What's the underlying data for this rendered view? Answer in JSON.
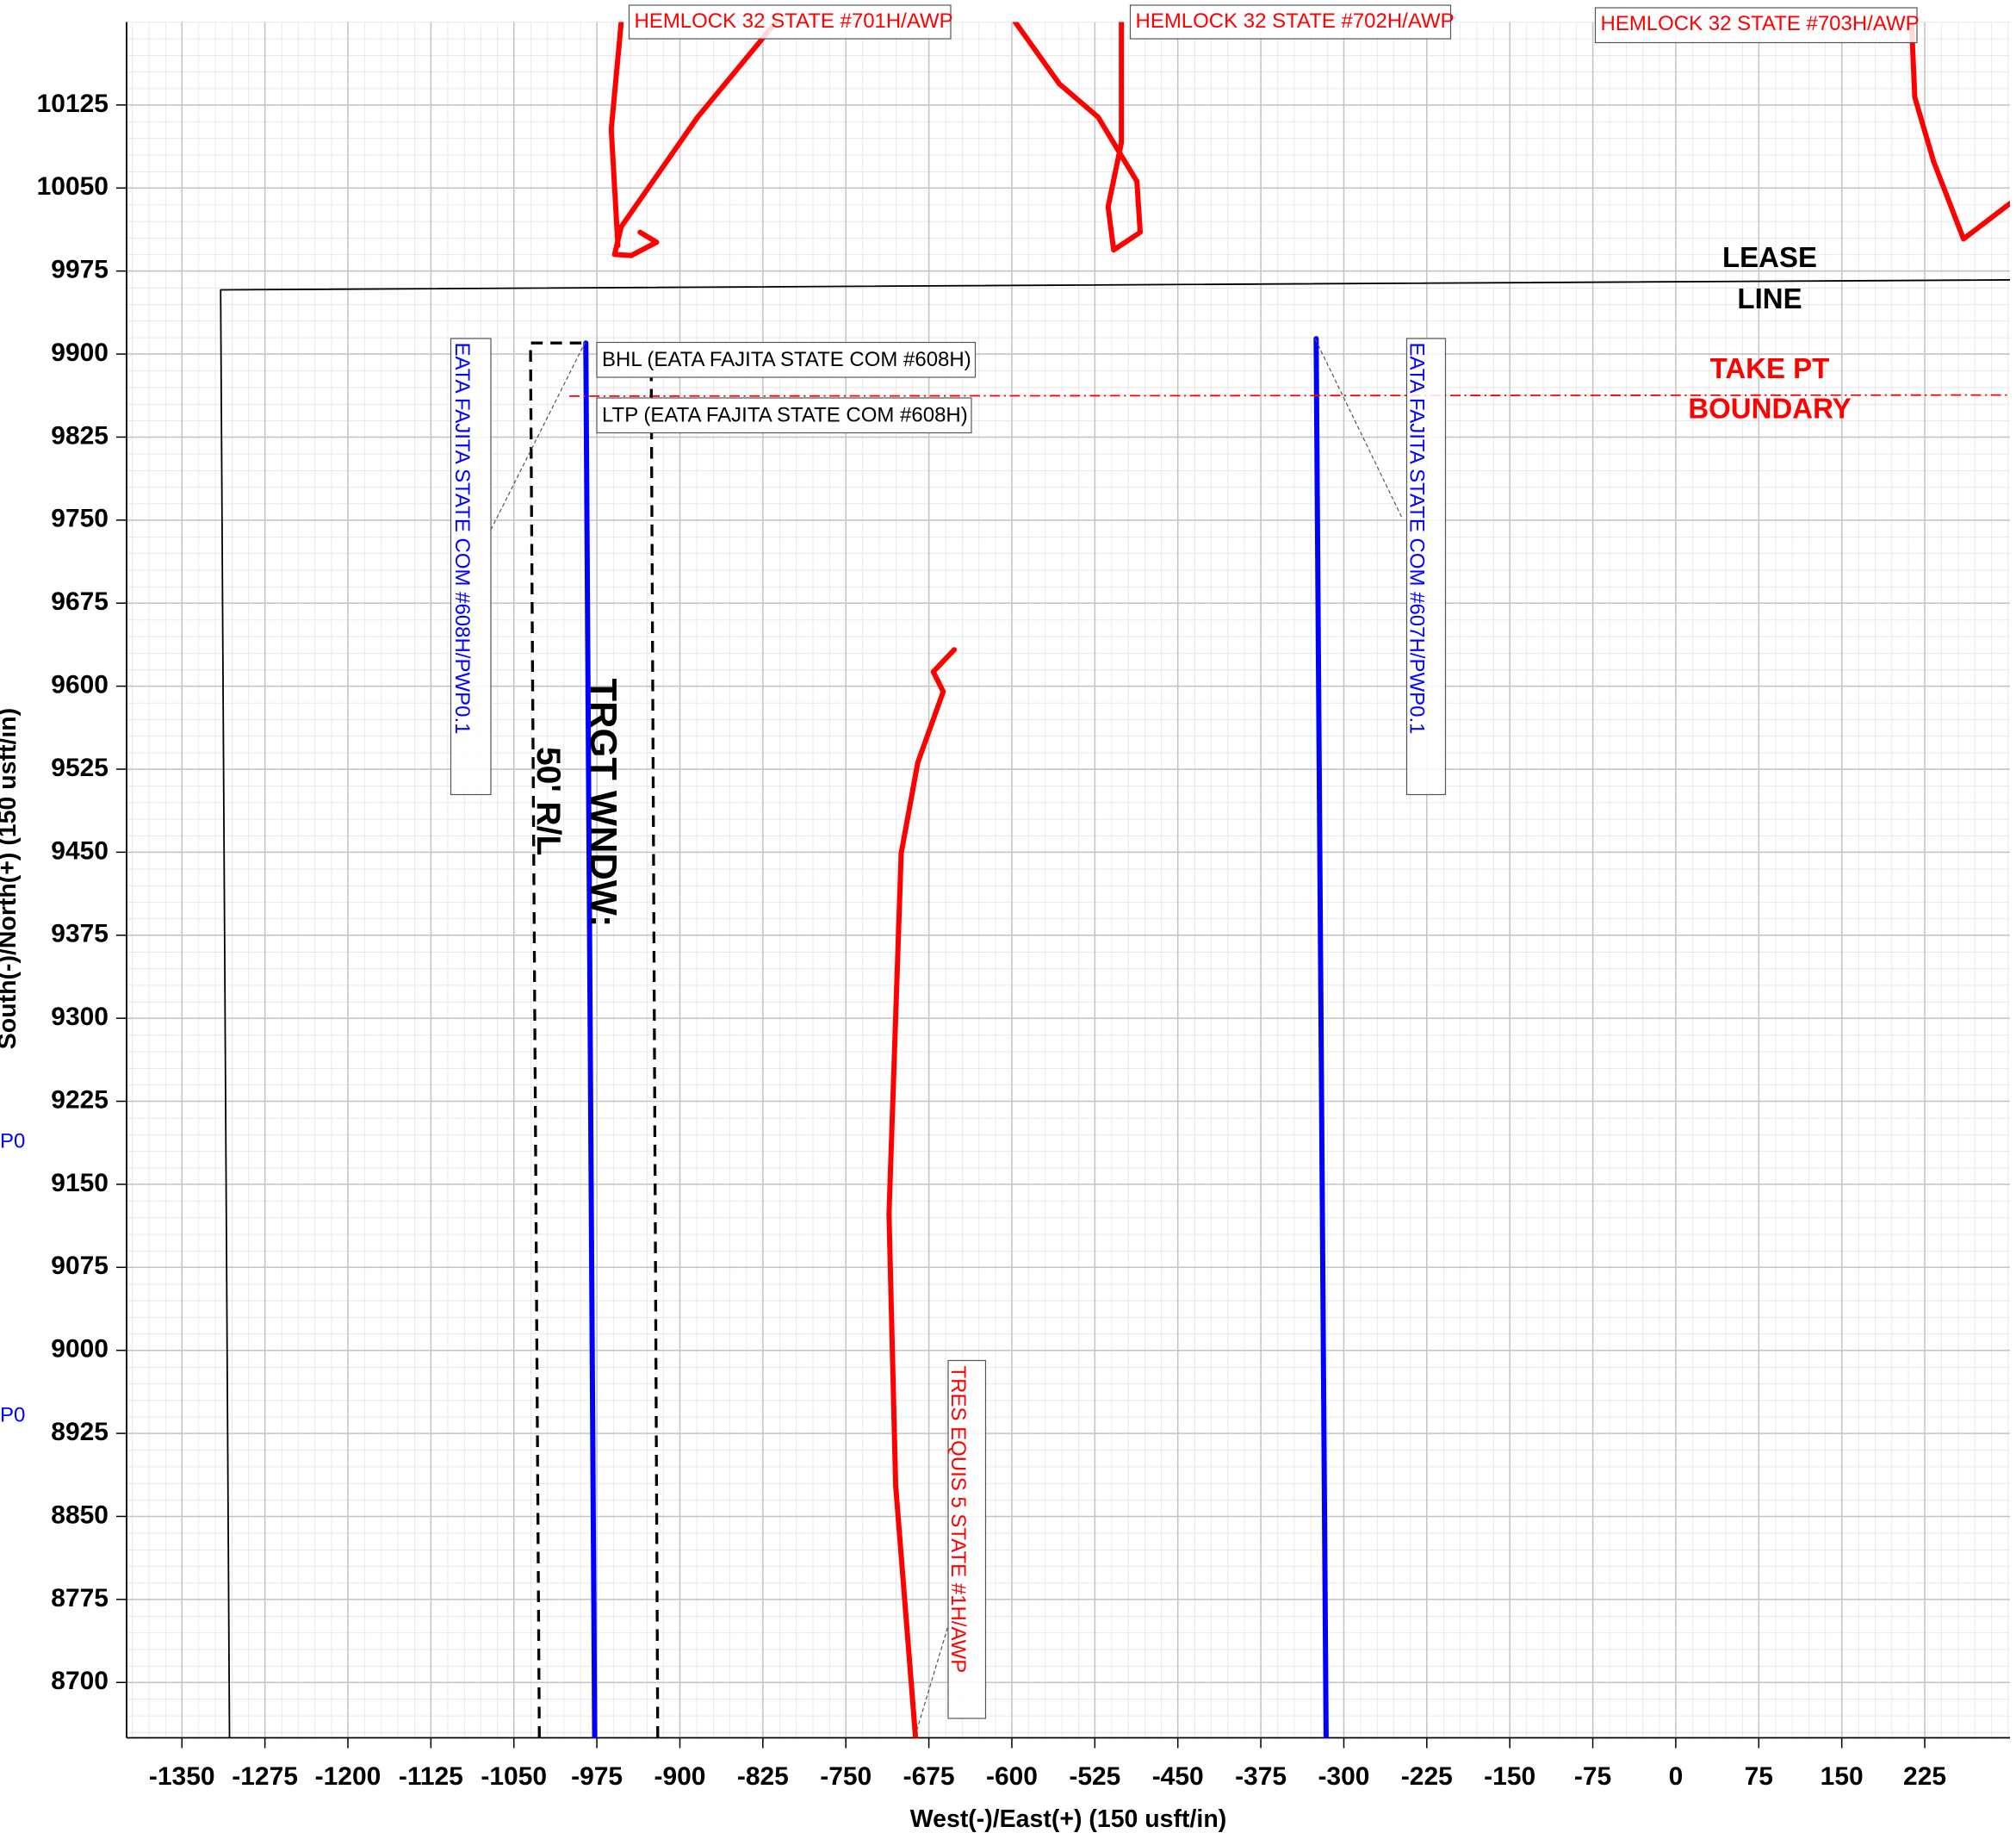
{
  "chart_data": {
    "type": "line",
    "x_label": "West(-)/East(+) (150 usft/in)",
    "y_label": "South(-)/North(+) (150 usft/in)",
    "xlim": [
      -1400,
      302
    ],
    "ylim": [
      8650,
      10200
    ],
    "xticks": [
      -1350,
      -1275,
      -1200,
      -1125,
      -1050,
      -975,
      -900,
      -825,
      -750,
      -675,
      -600,
      -525,
      -450,
      -375,
      -300,
      -225,
      -150,
      -75,
      0,
      75,
      150,
      225
    ],
    "yticks": [
      8700,
      8775,
      8850,
      8925,
      9000,
      9075,
      9150,
      9225,
      9300,
      9375,
      9450,
      9525,
      9600,
      9675,
      9750,
      9825,
      9900,
      9975,
      10050,
      10125
    ],
    "grid": true,
    "series": [
      {
        "name": "EATA FAJITA STATE COM #608H/PWP0.1",
        "color": "#0000ff",
        "x": [
          -985,
          -977
        ],
        "values": [
          9910,
          8650
        ]
      },
      {
        "name": "EATA FAJITA STATE COM #607H/PWP0.1",
        "color": "#0000ff",
        "x": [
          -325,
          -316
        ],
        "values": [
          9914,
          8650
        ]
      },
      {
        "name": "TRES EQUIS 5 STATE #1H/AWP",
        "color": "#ff0000",
        "x": [
          -687,
          -705,
          -711,
          -700,
          -685,
          -662,
          -671,
          -652
        ],
        "values": [
          8650,
          8878,
          9123,
          9449,
          9531,
          9595,
          9613,
          9633
        ]
      },
      {
        "name": "HEMLOCK 32 STATE #701H/AWP",
        "color": "#ff0000",
        "x": [
          -813,
          -884,
          -953,
          -959,
          -944,
          -921,
          -936,
          null,
          -953,
          -962,
          -956
        ],
        "values": [
          10200,
          10114,
          10015,
          9990,
          9989,
          10001,
          10010,
          null,
          10200,
          10103,
          9998
        ]
      },
      {
        "name": "HEMLOCK 32 STATE #702H/AWP",
        "color": "#ff0000",
        "x": [
          -597,
          -557,
          -522,
          -487,
          -484,
          -508,
          -513,
          -501,
          -501
        ],
        "values": [
          10200,
          10144,
          10114,
          10056,
          10010,
          9994,
          10033,
          10091,
          10200
        ]
      },
      {
        "name": "HEMLOCK 32 STATE #703H/AWP",
        "color": "#ff0000",
        "x": [
          213,
          216,
          233,
          260,
          302
        ],
        "values": [
          10200,
          10132,
          10074,
          10004,
          10036
        ]
      },
      {
        "color": "#000000",
        "x": [
          -1307,
          -1315,
          302
        ],
        "values": [
          8650,
          9958,
          9967
        ]
      },
      {
        "color": "#ff0000",
        "dash": "dashdot",
        "x": [
          -1000,
          302
        ],
        "values": [
          9862,
          9863
        ]
      },
      {
        "color": "#000000",
        "dash": "dashed",
        "x": [
          -1027,
          -1035,
          -984,
          null,
          -920,
          -926,
          -949
        ],
        "values": [
          8650,
          9910,
          9910,
          null,
          8650,
          9907,
          9907
        ]
      }
    ],
    "annotations": [
      "BHL (EATA FAJITA STATE COM #608H)",
      "LTP (EATA FAJITA STATE COM #608H)",
      "TRGT WNDW:",
      "50' R/L",
      "LEASE",
      "LINE",
      "TAKE PT",
      "BOUNDARY",
      "P0",
      "P0"
    ]
  }
}
